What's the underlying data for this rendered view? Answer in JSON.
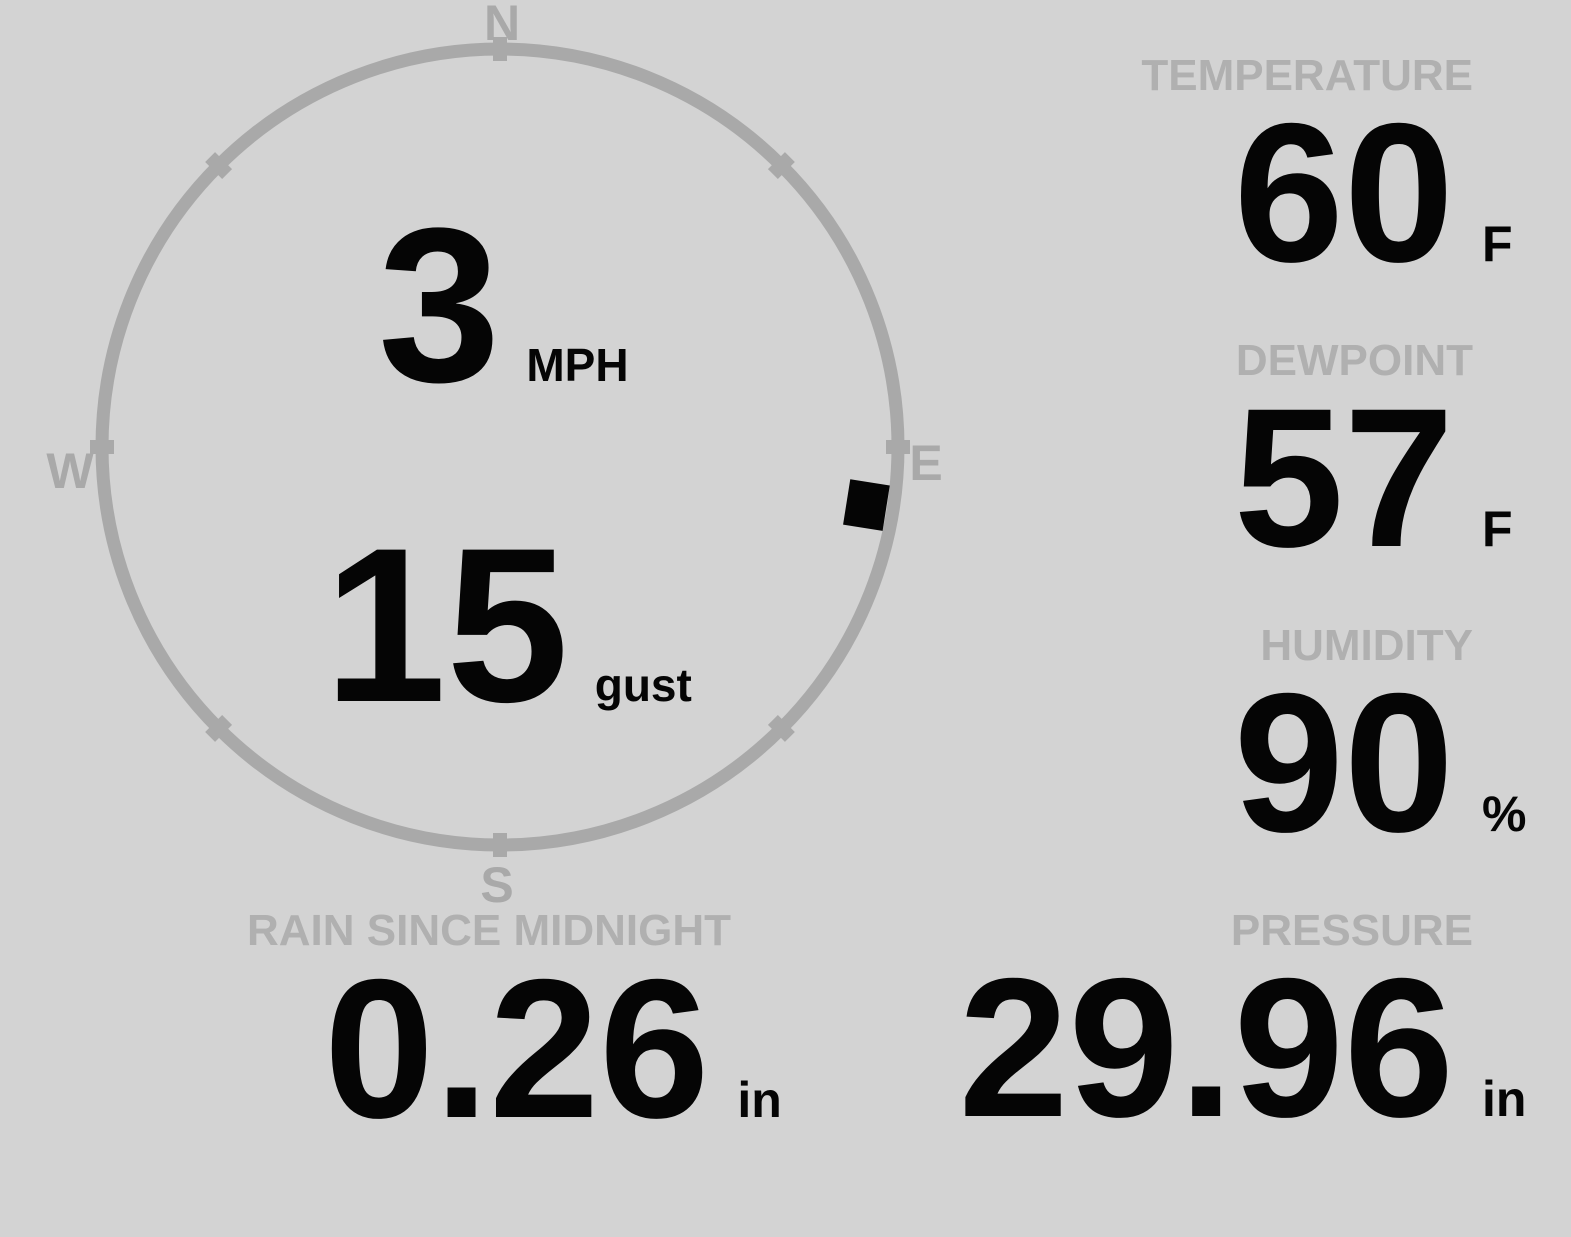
{
  "wind": {
    "compass": {
      "north": "N",
      "east": "E",
      "south": "S",
      "west": "W"
    },
    "speed_value": "3",
    "speed_unit": "MPH",
    "gust_value": "15",
    "gust_unit": "gust",
    "direction_deg": 99
  },
  "metrics": {
    "temperature": {
      "label": "TEMPERATURE",
      "value": "60",
      "unit": "F"
    },
    "dewpoint": {
      "label": "DEWPOINT",
      "value": "57",
      "unit": "F"
    },
    "humidity": {
      "label": "HUMIDITY",
      "value": "90",
      "unit": "%"
    },
    "rain": {
      "label": "RAIN SINCE MIDNIGHT",
      "value": "0.26",
      "unit": "in"
    },
    "pressure": {
      "label": "PRESSURE",
      "value": "29.96",
      "unit": "in"
    }
  },
  "colors": {
    "background": "#d3d3d3",
    "dial": "#a9a9a9",
    "label": "#b0b0b0",
    "value": "#050505",
    "marker": "#050505"
  }
}
